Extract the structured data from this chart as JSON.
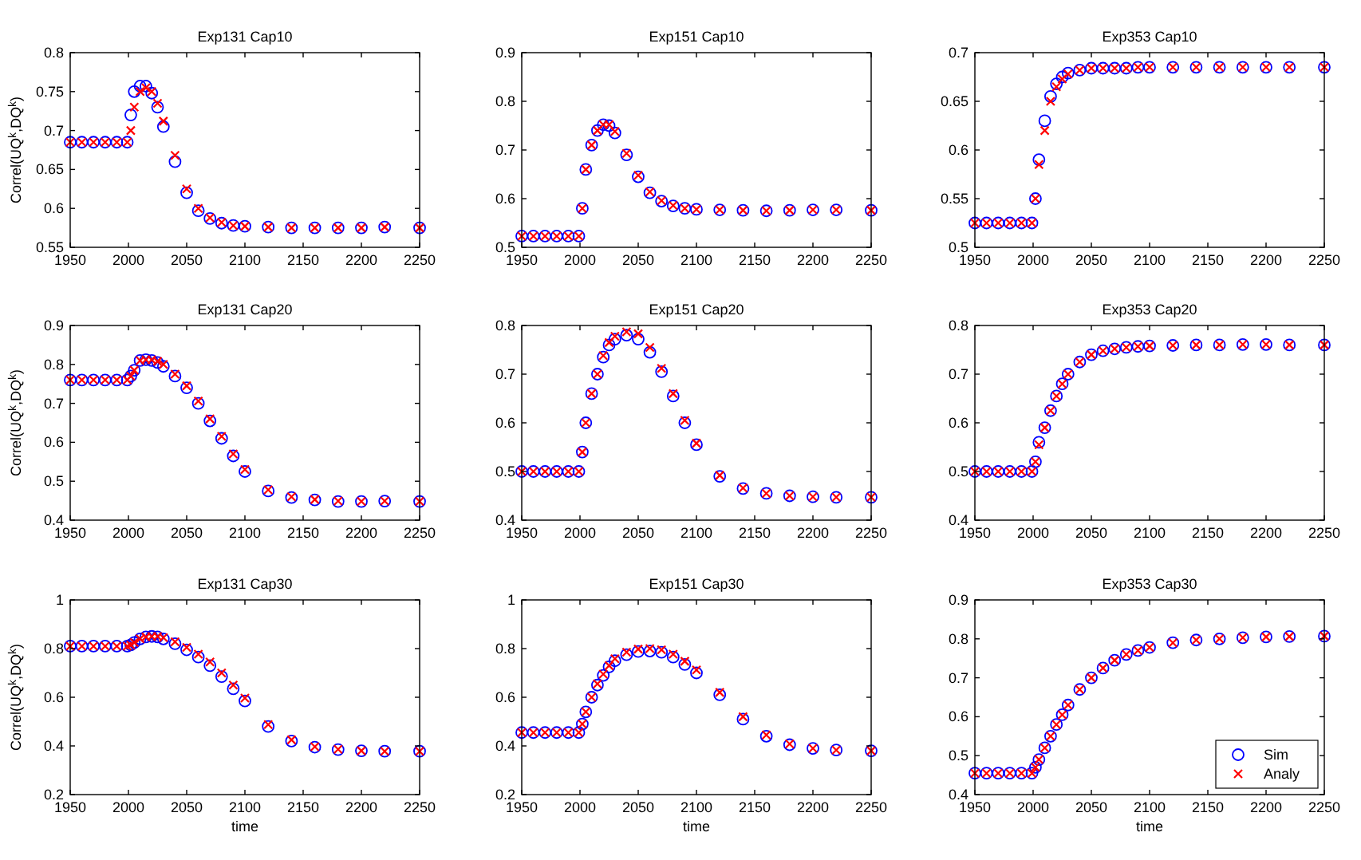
{
  "chart_data": [
    {
      "type": "scatter",
      "title": "Exp131 Cap10",
      "ylabel": "Correl(UQ$^{k}$,DQ$^{k}$)",
      "xlim": [
        1950,
        2250
      ],
      "xticks": [
        1950,
        2000,
        2050,
        2100,
        2150,
        2200,
        2250
      ],
      "ylim": [
        0.55,
        0.8
      ],
      "yticks": [
        0.55,
        0.6,
        0.65,
        0.7,
        0.75,
        0.8
      ],
      "legend": false,
      "x": [
        1950,
        1960,
        1970,
        1980,
        1990,
        1999,
        2002,
        2005,
        2010,
        2015,
        2020,
        2025,
        2030,
        2040,
        2050,
        2060,
        2070,
        2080,
        2090,
        2100,
        2120,
        2140,
        2160,
        2180,
        2200,
        2220,
        2250
      ],
      "series": [
        {
          "color": "#0000ff",
          "marker": "circle",
          "values": [
            0.685,
            0.685,
            0.685,
            0.685,
            0.685,
            0.685,
            0.72,
            0.75,
            0.757,
            0.757,
            0.748,
            0.73,
            0.705,
            0.66,
            0.62,
            0.597,
            0.587,
            0.581,
            0.578,
            0.577,
            0.576,
            0.575,
            0.575,
            0.575,
            0.575,
            0.576,
            0.575
          ]
        },
        {
          "color": "#ff0000",
          "marker": "cross",
          "values": [
            0.685,
            0.685,
            0.685,
            0.685,
            0.685,
            0.685,
            0.7,
            0.73,
            0.75,
            0.755,
            0.75,
            0.735,
            0.712,
            0.668,
            0.625,
            0.6,
            0.588,
            0.582,
            0.578,
            0.577,
            0.576,
            0.575,
            0.575,
            0.575,
            0.575,
            0.576,
            0.575
          ]
        }
      ]
    },
    {
      "type": "scatter",
      "title": "Exp151 Cap10",
      "xlim": [
        1950,
        2250
      ],
      "xticks": [
        1950,
        2000,
        2050,
        2100,
        2150,
        2200,
        2250
      ],
      "ylim": [
        0.5,
        0.9
      ],
      "yticks": [
        0.5,
        0.6,
        0.7,
        0.8,
        0.9
      ],
      "legend": false,
      "x": [
        1950,
        1960,
        1970,
        1980,
        1990,
        1999,
        2002,
        2005,
        2010,
        2015,
        2020,
        2025,
        2030,
        2040,
        2050,
        2060,
        2070,
        2080,
        2090,
        2100,
        2120,
        2140,
        2160,
        2180,
        2200,
        2220,
        2250
      ],
      "series": [
        {
          "color": "#0000ff",
          "marker": "circle",
          "values": [
            0.523,
            0.523,
            0.523,
            0.523,
            0.523,
            0.523,
            0.58,
            0.66,
            0.71,
            0.74,
            0.752,
            0.75,
            0.735,
            0.69,
            0.645,
            0.612,
            0.595,
            0.585,
            0.58,
            0.578,
            0.577,
            0.576,
            0.575,
            0.576,
            0.577,
            0.577,
            0.576
          ]
        },
        {
          "color": "#ff0000",
          "marker": "cross",
          "values": [
            0.523,
            0.523,
            0.523,
            0.523,
            0.523,
            0.523,
            0.58,
            0.66,
            0.71,
            0.74,
            0.752,
            0.752,
            0.738,
            0.693,
            0.648,
            0.614,
            0.596,
            0.586,
            0.58,
            0.578,
            0.577,
            0.576,
            0.575,
            0.576,
            0.577,
            0.577,
            0.576
          ]
        }
      ]
    },
    {
      "type": "scatter",
      "title": "Exp353 Cap10",
      "xlim": [
        1950,
        2250
      ],
      "xticks": [
        1950,
        2000,
        2050,
        2100,
        2150,
        2200,
        2250
      ],
      "ylim": [
        0.5,
        0.7
      ],
      "yticks": [
        0.5,
        0.55,
        0.6,
        0.65,
        0.7
      ],
      "legend": false,
      "x": [
        1950,
        1960,
        1970,
        1980,
        1990,
        1999,
        2002,
        2005,
        2010,
        2015,
        2020,
        2025,
        2030,
        2040,
        2050,
        2060,
        2070,
        2080,
        2090,
        2100,
        2120,
        2140,
        2160,
        2180,
        2200,
        2220,
        2250
      ],
      "series": [
        {
          "color": "#0000ff",
          "marker": "circle",
          "values": [
            0.525,
            0.525,
            0.525,
            0.525,
            0.525,
            0.525,
            0.55,
            0.59,
            0.63,
            0.655,
            0.668,
            0.675,
            0.679,
            0.682,
            0.684,
            0.684,
            0.684,
            0.684,
            0.685,
            0.685,
            0.685,
            0.685,
            0.685,
            0.685,
            0.685,
            0.685,
            0.685
          ]
        },
        {
          "color": "#ff0000",
          "marker": "cross",
          "values": [
            0.525,
            0.525,
            0.525,
            0.525,
            0.525,
            0.525,
            0.55,
            0.585,
            0.62,
            0.65,
            0.665,
            0.673,
            0.678,
            0.682,
            0.684,
            0.684,
            0.684,
            0.684,
            0.685,
            0.685,
            0.685,
            0.685,
            0.685,
            0.685,
            0.685,
            0.685,
            0.685
          ]
        }
      ]
    },
    {
      "type": "scatter",
      "title": "Exp131 Cap20",
      "ylabel": "Correl(UQ$^{k}$,DQ$^{k}$)",
      "xlim": [
        1950,
        2250
      ],
      "xticks": [
        1950,
        2000,
        2050,
        2100,
        2150,
        2200,
        2250
      ],
      "ylim": [
        0.4,
        0.9
      ],
      "yticks": [
        0.4,
        0.5,
        0.6,
        0.7,
        0.8,
        0.9
      ],
      "legend": false,
      "x": [
        1950,
        1960,
        1970,
        1980,
        1990,
        1999,
        2002,
        2005,
        2010,
        2015,
        2020,
        2025,
        2030,
        2040,
        2050,
        2060,
        2070,
        2080,
        2090,
        2100,
        2120,
        2140,
        2160,
        2180,
        2200,
        2220,
        2250
      ],
      "series": [
        {
          "color": "#0000ff",
          "marker": "circle",
          "values": [
            0.76,
            0.76,
            0.76,
            0.76,
            0.76,
            0.76,
            0.77,
            0.785,
            0.81,
            0.812,
            0.81,
            0.805,
            0.795,
            0.77,
            0.74,
            0.7,
            0.655,
            0.61,
            0.565,
            0.525,
            0.475,
            0.458,
            0.452,
            0.448,
            0.448,
            0.449,
            0.448
          ]
        },
        {
          "color": "#ff0000",
          "marker": "cross",
          "values": [
            0.76,
            0.76,
            0.76,
            0.76,
            0.76,
            0.76,
            0.77,
            0.785,
            0.81,
            0.812,
            0.812,
            0.808,
            0.8,
            0.775,
            0.745,
            0.706,
            0.66,
            0.615,
            0.57,
            0.53,
            0.478,
            0.46,
            0.453,
            0.449,
            0.448,
            0.449,
            0.448
          ]
        }
      ]
    },
    {
      "type": "scatter",
      "title": "Exp151 Cap20",
      "xlim": [
        1950,
        2250
      ],
      "xticks": [
        1950,
        2000,
        2050,
        2100,
        2150,
        2200,
        2250
      ],
      "ylim": [
        0.4,
        0.8
      ],
      "yticks": [
        0.4,
        0.5,
        0.6,
        0.7,
        0.8
      ],
      "legend": false,
      "x": [
        1950,
        1960,
        1970,
        1980,
        1990,
        1999,
        2002,
        2005,
        2010,
        2015,
        2020,
        2025,
        2030,
        2040,
        2050,
        2060,
        2070,
        2080,
        2090,
        2100,
        2120,
        2140,
        2160,
        2180,
        2200,
        2220,
        2250
      ],
      "series": [
        {
          "color": "#0000ff",
          "marker": "circle",
          "values": [
            0.5,
            0.5,
            0.5,
            0.5,
            0.5,
            0.5,
            0.54,
            0.6,
            0.66,
            0.7,
            0.735,
            0.76,
            0.772,
            0.78,
            0.772,
            0.745,
            0.705,
            0.655,
            0.6,
            0.555,
            0.49,
            0.465,
            0.455,
            0.45,
            0.448,
            0.447,
            0.447
          ]
        },
        {
          "color": "#ff0000",
          "marker": "cross",
          "values": [
            0.5,
            0.5,
            0.5,
            0.5,
            0.5,
            0.5,
            0.54,
            0.6,
            0.66,
            0.7,
            0.738,
            0.765,
            0.778,
            0.787,
            0.783,
            0.755,
            0.712,
            0.66,
            0.605,
            0.558,
            0.492,
            0.466,
            0.455,
            0.45,
            0.448,
            0.447,
            0.447
          ]
        }
      ]
    },
    {
      "type": "scatter",
      "title": "Exp353 Cap20",
      "xlim": [
        1950,
        2250
      ],
      "xticks": [
        1950,
        2000,
        2050,
        2100,
        2150,
        2200,
        2250
      ],
      "ylim": [
        0.4,
        0.8
      ],
      "yticks": [
        0.4,
        0.5,
        0.6,
        0.7,
        0.8
      ],
      "legend": false,
      "x": [
        1950,
        1960,
        1970,
        1980,
        1990,
        1999,
        2002,
        2005,
        2010,
        2015,
        2020,
        2025,
        2030,
        2040,
        2050,
        2060,
        2070,
        2080,
        2090,
        2100,
        2120,
        2140,
        2160,
        2180,
        2200,
        2220,
        2250
      ],
      "series": [
        {
          "color": "#0000ff",
          "marker": "circle",
          "values": [
            0.5,
            0.5,
            0.5,
            0.5,
            0.5,
            0.5,
            0.52,
            0.56,
            0.59,
            0.625,
            0.655,
            0.68,
            0.7,
            0.725,
            0.74,
            0.748,
            0.752,
            0.755,
            0.757,
            0.758,
            0.759,
            0.76,
            0.76,
            0.761,
            0.761,
            0.76,
            0.76
          ]
        },
        {
          "color": "#ff0000",
          "marker": "cross",
          "values": [
            0.5,
            0.5,
            0.5,
            0.5,
            0.5,
            0.5,
            0.52,
            0.555,
            0.59,
            0.625,
            0.655,
            0.68,
            0.7,
            0.725,
            0.74,
            0.748,
            0.752,
            0.755,
            0.757,
            0.758,
            0.759,
            0.76,
            0.76,
            0.761,
            0.761,
            0.76,
            0.76
          ]
        }
      ]
    },
    {
      "type": "scatter",
      "title": "Exp131 Cap30",
      "xlabel": "time",
      "ylabel": "Correl(UQ$^{k}$,DQ$^{k}$)",
      "xlim": [
        1950,
        2250
      ],
      "xticks": [
        1950,
        2000,
        2050,
        2100,
        2150,
        2200,
        2250
      ],
      "ylim": [
        0.2,
        1
      ],
      "yticks": [
        0.2,
        0.4,
        0.6,
        0.8,
        1
      ],
      "legend": false,
      "x": [
        1950,
        1960,
        1970,
        1980,
        1990,
        1999,
        2002,
        2005,
        2010,
        2015,
        2020,
        2025,
        2030,
        2040,
        2050,
        2060,
        2070,
        2080,
        2090,
        2100,
        2120,
        2140,
        2160,
        2180,
        2200,
        2220,
        2250
      ],
      "series": [
        {
          "color": "#0000ff",
          "marker": "circle",
          "values": [
            0.81,
            0.81,
            0.81,
            0.81,
            0.81,
            0.81,
            0.815,
            0.825,
            0.84,
            0.848,
            0.85,
            0.848,
            0.84,
            0.82,
            0.795,
            0.765,
            0.73,
            0.685,
            0.635,
            0.585,
            0.48,
            0.42,
            0.395,
            0.385,
            0.38,
            0.378,
            0.378
          ]
        },
        {
          "color": "#ff0000",
          "marker": "cross",
          "values": [
            0.81,
            0.81,
            0.81,
            0.81,
            0.81,
            0.81,
            0.815,
            0.825,
            0.84,
            0.848,
            0.85,
            0.85,
            0.845,
            0.828,
            0.805,
            0.777,
            0.745,
            0.7,
            0.65,
            0.597,
            0.488,
            0.425,
            0.397,
            0.386,
            0.38,
            0.378,
            0.378
          ]
        }
      ]
    },
    {
      "type": "scatter",
      "title": "Exp151 Cap30",
      "xlabel": "time",
      "xlim": [
        1950,
        2250
      ],
      "xticks": [
        1950,
        2000,
        2050,
        2100,
        2150,
        2200,
        2250
      ],
      "ylim": [
        0.2,
        1
      ],
      "yticks": [
        0.2,
        0.4,
        0.6,
        0.8,
        1
      ],
      "legend": false,
      "x": [
        1950,
        1960,
        1970,
        1980,
        1990,
        1999,
        2002,
        2005,
        2010,
        2015,
        2020,
        2025,
        2030,
        2040,
        2050,
        2060,
        2070,
        2080,
        2090,
        2100,
        2120,
        2140,
        2160,
        2180,
        2200,
        2220,
        2250
      ],
      "series": [
        {
          "color": "#0000ff",
          "marker": "circle",
          "values": [
            0.455,
            0.455,
            0.455,
            0.455,
            0.455,
            0.455,
            0.49,
            0.54,
            0.6,
            0.65,
            0.69,
            0.725,
            0.75,
            0.775,
            0.788,
            0.79,
            0.785,
            0.765,
            0.735,
            0.7,
            0.61,
            0.51,
            0.44,
            0.405,
            0.39,
            0.383,
            0.38
          ]
        },
        {
          "color": "#ff0000",
          "marker": "cross",
          "values": [
            0.455,
            0.455,
            0.455,
            0.455,
            0.455,
            0.455,
            0.49,
            0.54,
            0.6,
            0.655,
            0.695,
            0.73,
            0.758,
            0.785,
            0.798,
            0.8,
            0.795,
            0.777,
            0.748,
            0.712,
            0.62,
            0.52,
            0.445,
            0.408,
            0.39,
            0.383,
            0.38
          ]
        }
      ]
    },
    {
      "type": "scatter",
      "title": "Exp353 Cap30",
      "xlabel": "time",
      "xlim": [
        1950,
        2250
      ],
      "xticks": [
        1950,
        2000,
        2050,
        2100,
        2150,
        2200,
        2250
      ],
      "ylim": [
        0.4,
        0.9
      ],
      "yticks": [
        0.4,
        0.5,
        0.6,
        0.7,
        0.8,
        0.9
      ],
      "legend": "bottom right",
      "x": [
        1950,
        1960,
        1970,
        1980,
        1990,
        1999,
        2002,
        2005,
        2010,
        2015,
        2020,
        2025,
        2030,
        2040,
        2050,
        2060,
        2070,
        2080,
        2090,
        2100,
        2120,
        2140,
        2160,
        2180,
        2200,
        2220,
        2250
      ],
      "series": [
        {
          "name": "Sim",
          "color": "#0000ff",
          "marker": "circle",
          "values": [
            0.455,
            0.455,
            0.455,
            0.455,
            0.455,
            0.455,
            0.47,
            0.49,
            0.52,
            0.55,
            0.58,
            0.605,
            0.63,
            0.67,
            0.7,
            0.725,
            0.745,
            0.76,
            0.77,
            0.778,
            0.79,
            0.797,
            0.8,
            0.803,
            0.805,
            0.806,
            0.807
          ]
        },
        {
          "name": "Analy",
          "color": "#ff0000",
          "marker": "cross",
          "values": [
            0.455,
            0.455,
            0.455,
            0.455,
            0.455,
            0.455,
            0.47,
            0.49,
            0.52,
            0.55,
            0.58,
            0.605,
            0.63,
            0.67,
            0.7,
            0.725,
            0.745,
            0.76,
            0.77,
            0.778,
            0.79,
            0.797,
            0.8,
            0.803,
            0.805,
            0.806,
            0.807
          ]
        }
      ]
    }
  ]
}
